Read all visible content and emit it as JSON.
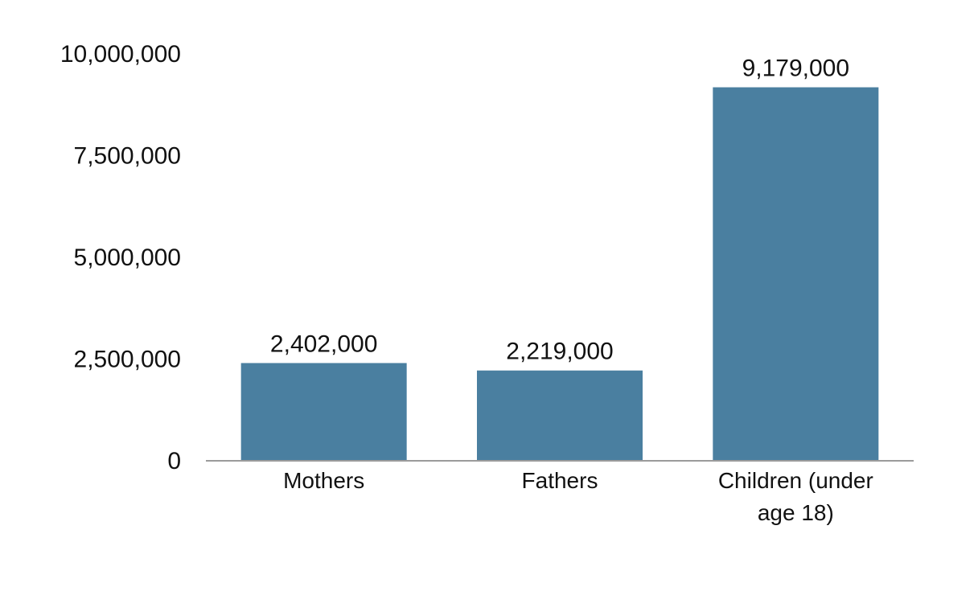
{
  "chart_data": {
    "type": "bar",
    "title": "",
    "xlabel": "",
    "ylabel": "",
    "ylim": [
      0,
      10000000
    ],
    "yticks": [
      0,
      2500000,
      5000000,
      7500000,
      10000000
    ],
    "ytick_labels": [
      "0",
      "2,500,000",
      "5,000,000",
      "7,500,000",
      "10,000,000"
    ],
    "categories": [
      [
        "Mothers"
      ],
      [
        "Fathers"
      ],
      [
        "Children (under",
        "age 18)"
      ]
    ],
    "values": [
      2402000,
      2219000,
      9179000
    ],
    "data_labels": [
      "2,402,000",
      "2,219,000",
      "9,179,000"
    ],
    "grid": false,
    "colors": {
      "bar": "#4a7fa0",
      "axis": "#9b9b9b",
      "text": "#111111"
    }
  }
}
